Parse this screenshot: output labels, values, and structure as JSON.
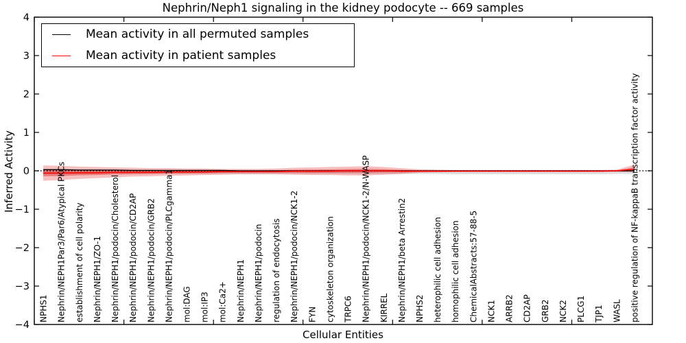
{
  "chart_data": {
    "type": "line",
    "title": "Nephrin/Neph1 signaling in the kidney podocyte -- 669 samples",
    "xlabel": "Cellular Entities",
    "ylabel": "Inferred Activity",
    "ylim": [
      -4,
      4
    ],
    "xlim": [
      0,
      34.5
    ],
    "yticks": [
      -4,
      -3,
      -2,
      -1,
      0,
      1,
      2,
      3,
      4
    ],
    "xtick_step": 5,
    "legend_position": "upper left",
    "grid": false,
    "zero_line": {
      "style": "dotted",
      "color": "#000000",
      "y": 0
    },
    "categories": [
      "NPHS1",
      "Nephrin/NEPH1Par3/Par6/Atypical PKCs",
      "establishment of cell polarity",
      "Nephrin/NEPH1/ZO-1",
      "Nephrin/NEPH1/podocin/Cholesterol",
      "Nephrin/NEPH1/podocin/CD2AP",
      "Nephrin/NEPH1/podocin/GRB2",
      "Nephrin/NEPH1/podocin/PLCgamma1",
      "mol:DAG",
      "mol:IP3",
      "mol:Ca2+",
      "Nephrin/NEPH1",
      "Nephrin/NEPH1/podocin",
      "regulation of endocytosis",
      "Nephrin/NEPH1/podocin/NCK1-2",
      "FYN",
      "cytoskeleton organization",
      "TRPC6",
      "Nephrin/NEPH1/podocin/NCK1-2/N-WASP",
      "KIRREL",
      "Nephrin/NEPH1/beta Arrestin2",
      "NPHS2",
      "heterophilic cell adhesion",
      "homophilic cell adhesion",
      "ChemicalAbstracts:57-88-5",
      "NCK1",
      "ARRB2",
      "CD2AP",
      "GRB2",
      "NCK2",
      "PLCG1",
      "TJP1",
      "WASL",
      "positive regulation of NF-kappaB transcription factor activity"
    ],
    "series": [
      {
        "name": "Mean activity in all permuted samples",
        "color": "#000000",
        "values": [
          0.03,
          0.03,
          0.02,
          0.02,
          0.02,
          0.01,
          0.01,
          0.01,
          0.01,
          0.01,
          0.01,
          0.0,
          0.0,
          0.0,
          0.0,
          0.0,
          0.0,
          0.0,
          0.0,
          0.0,
          0.0,
          0.0,
          0.0,
          0.0,
          0.0,
          0.0,
          0.0,
          0.0,
          0.0,
          0.0,
          0.0,
          0.0,
          0.0,
          0.0
        ],
        "band_upper": [
          0.05,
          0.05,
          0.04,
          0.04,
          0.03,
          0.03,
          0.03,
          0.02,
          0.02,
          0.02,
          0.02,
          0.02,
          0.02,
          0.02,
          0.02,
          0.02,
          0.02,
          0.02,
          0.02,
          0.02,
          0.02,
          0.02,
          0.02,
          0.02,
          0.02,
          0.02,
          0.02,
          0.02,
          0.02,
          0.02,
          0.02,
          0.02,
          0.02,
          0.02
        ],
        "band_lower": [
          -0.1,
          -0.09,
          -0.09,
          -0.08,
          -0.08,
          -0.08,
          -0.08,
          -0.08,
          -0.08,
          -0.08,
          -0.08,
          -0.08,
          -0.08,
          -0.08,
          -0.08,
          -0.08,
          -0.08,
          -0.08,
          -0.08,
          -0.08,
          -0.08,
          -0.08,
          -0.08,
          -0.09,
          -0.09,
          -0.09,
          -0.09,
          -0.09,
          -0.09,
          -0.09,
          -0.09,
          -0.09,
          -0.08,
          -0.08
        ],
        "band_color": "rgba(140,140,140,0.28)"
      },
      {
        "name": "Mean activity in patient samples",
        "color": "#ff0000",
        "values": [
          -0.06,
          -0.06,
          -0.05,
          -0.05,
          -0.04,
          -0.04,
          -0.04,
          -0.03,
          -0.03,
          -0.03,
          -0.02,
          -0.02,
          -0.02,
          -0.02,
          -0.01,
          -0.01,
          -0.01,
          0.0,
          0.0,
          0.0,
          -0.01,
          -0.01,
          -0.01,
          -0.01,
          -0.01,
          -0.01,
          -0.01,
          -0.01,
          -0.01,
          -0.01,
          -0.01,
          -0.01,
          0.0,
          0.04
        ],
        "band_upper": [
          0.14,
          0.13,
          0.11,
          0.1,
          0.09,
          0.08,
          0.07,
          0.07,
          0.06,
          0.06,
          0.05,
          0.05,
          0.05,
          0.06,
          0.08,
          0.09,
          0.1,
          0.11,
          0.12,
          0.1,
          0.07,
          0.04,
          0.03,
          0.02,
          0.02,
          0.02,
          0.02,
          0.02,
          0.02,
          0.02,
          0.02,
          0.02,
          0.03,
          0.16
        ],
        "band_lower": [
          -0.26,
          -0.24,
          -0.21,
          -0.19,
          -0.17,
          -0.15,
          -0.14,
          -0.13,
          -0.12,
          -0.11,
          -0.1,
          -0.09,
          -0.09,
          -0.09,
          -0.1,
          -0.11,
          -0.11,
          -0.12,
          -0.12,
          -0.1,
          -0.08,
          -0.05,
          -0.04,
          -0.03,
          -0.03,
          -0.03,
          -0.03,
          -0.03,
          -0.03,
          -0.03,
          -0.03,
          -0.03,
          -0.03,
          -0.04
        ],
        "band_color": "rgba(225,45,45,0.30)",
        "band_inner_color": "rgba(225,45,45,0.45)"
      }
    ]
  }
}
